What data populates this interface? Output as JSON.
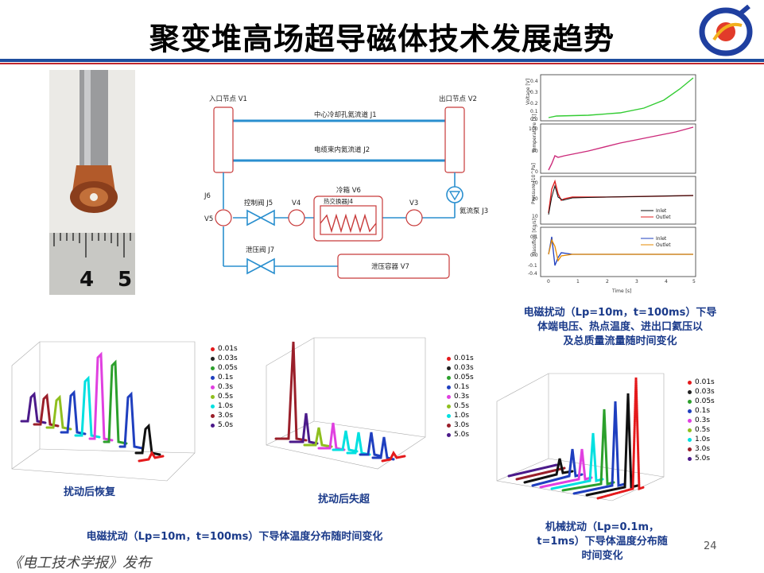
{
  "title": "聚变堆高场超导磁体技术发展趋势",
  "photo": {
    "ruler_labels": [
      "4",
      "5"
    ]
  },
  "schematic": {
    "inlet_node": "入口节点 V1",
    "outlet_node": "出口节点 V2",
    "center_channel": "中心冷却孔氦流道 J1",
    "cable_channel": "电缆束内氦流道 J2",
    "j6": "J6",
    "v5": "V5",
    "control_valve": "控制阀 J5",
    "v4": "V4",
    "cold_box": "冷箱 V6",
    "heat_exchanger": "热交换器J4",
    "v3": "V3",
    "pump": "氦流泵 J3",
    "relief_valve": "泄压阀 J7",
    "relief_vessel": "泄压容器 V7"
  },
  "plots4": {
    "ylabels": [
      "Voltage [V]",
      "Temperature [K]",
      "Pressure [10^Pa]",
      "Massflow [Kg/s]"
    ],
    "xlabel": "Time [s]",
    "xticks": [
      "0",
      "1",
      "2",
      "3",
      "4",
      "5"
    ],
    "voltage_ticks": [
      "0.4",
      "0.3",
      "0.2",
      "0.1",
      "0.0"
    ],
    "temp_ticks": [
      "100",
      "50",
      "0"
    ],
    "pressure_ticks": [
      "30",
      "20",
      "10"
    ],
    "flow_ticks": [
      "0.1",
      "0.0",
      "-0.1",
      "-0.4"
    ],
    "legend_pressure": [
      "Inlet",
      "Outlet"
    ],
    "legend_flow": [
      "Inlet",
      "Outlet"
    ]
  },
  "caption_em_pulse": "电磁扰动（Lp=10m，t=100ms）下导体端电压、热点温度、进出口氦压以及总质量流量随时间变化",
  "caption_em_pulse_lines": [
    "电磁扰动（Lp=10m，t=100ms）下导",
    "体端电压、热点温度、进出口氦压以",
    "及总质量流量随时间变化"
  ],
  "legend_times_a": [
    "0.01s",
    "0.03s",
    "0.05s",
    "0.1s",
    "0.3s",
    "0.5s",
    "1.0s",
    "3.0s",
    "5.0s"
  ],
  "legend_times_b": [
    "0.01s",
    "0.03s",
    "0.05s",
    "0.1s",
    "0.3s",
    "0.5s",
    "1.0s",
    "3.0s",
    "5.0s"
  ],
  "legend_times_c": [
    "0.01s",
    "0.03s",
    "0.05s",
    "0.1s",
    "0.3s",
    "0.5s",
    "1.0s",
    "3.0s",
    "5.0s"
  ],
  "legend_colors": [
    "#e41a1c",
    "#222222",
    "#2ca02c",
    "#1f3fbf",
    "#e040e0",
    "#8fbf1f",
    "#00e0e0",
    "#9a1f2a",
    "#4b1a8a"
  ],
  "sub_recover": "扰动后恢复",
  "sub_quench": "扰动后失超",
  "caption_em_temp": "电磁扰动（Lp=10m，t=100ms）下导体温度分布随时间变化",
  "caption_mech_lines": [
    "机械扰动（Lp=0.1m，",
    "t=1ms）下导体温度分布随",
    "时间变化"
  ],
  "page_number": "24",
  "publisher": "《电工技术学报》发布"
}
